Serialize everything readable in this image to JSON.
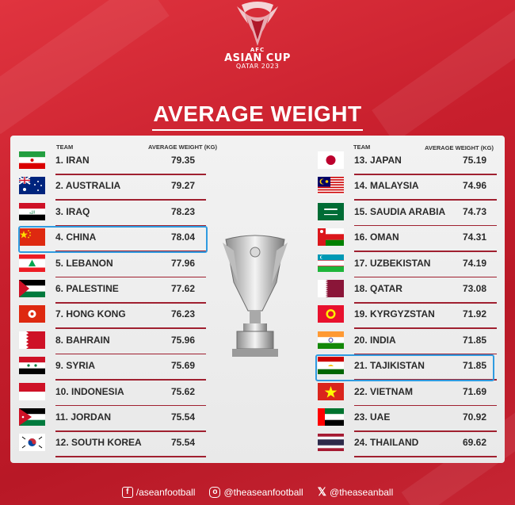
{
  "logo": {
    "line1": "AFC",
    "line2": "ASIAN CUP",
    "line3": "QATAR 2023"
  },
  "title": "AVERAGE WEIGHT",
  "headers": {
    "team": "TEAM",
    "weight": "AVERAGE WEIGHT (KG)"
  },
  "left": [
    {
      "name": "1. IRAN",
      "weight": "79.35",
      "flag": "iran"
    },
    {
      "name": "2. AUSTRALIA",
      "weight": "79.27",
      "flag": "australia"
    },
    {
      "name": "3. IRAQ",
      "weight": "78.23",
      "flag": "iraq"
    },
    {
      "name": "4. CHINA",
      "weight": "78.04",
      "flag": "china"
    },
    {
      "name": "5. LEBANON",
      "weight": "77.96",
      "flag": "lebanon"
    },
    {
      "name": "6. PALESTINE",
      "weight": "77.62",
      "flag": "palestine"
    },
    {
      "name": "7. HONG KONG",
      "weight": "76.23",
      "flag": "hong-kong"
    },
    {
      "name": "8. BAHRAIN",
      "weight": "75.96",
      "flag": "bahrain"
    },
    {
      "name": "9. SYRIA",
      "weight": "75.69",
      "flag": "syria"
    },
    {
      "name": "10. INDONESIA",
      "weight": "75.62",
      "flag": "indonesia"
    },
    {
      "name": "11. JORDAN",
      "weight": "75.54",
      "flag": "jordan"
    },
    {
      "name": "12. SOUTH KOREA",
      "weight": "75.54",
      "flag": "south-korea"
    }
  ],
  "right": [
    {
      "name": "13. JAPAN",
      "weight": "75.19",
      "flag": "japan"
    },
    {
      "name": "14. MALAYSIA",
      "weight": "74.96",
      "flag": "malaysia"
    },
    {
      "name": "15. SAUDIA ARABIA",
      "weight": "74.73",
      "flag": "saudi-arabia"
    },
    {
      "name": "16. OMAN",
      "weight": "74.31",
      "flag": "oman"
    },
    {
      "name": "17. UZBEKISTAN",
      "weight": "74.19",
      "flag": "uzbekistan"
    },
    {
      "name": "18. QATAR",
      "weight": "73.08",
      "flag": "qatar"
    },
    {
      "name": "19. KYRGYZSTAN",
      "weight": "71.92",
      "flag": "kyrgyzstan"
    },
    {
      "name": "20. INDIA",
      "weight": "71.85",
      "flag": "india"
    },
    {
      "name": "21. TAJIKISTAN",
      "weight": "71.85",
      "flag": "tajikistan"
    },
    {
      "name": "22. VIETNAM",
      "weight": "71.69",
      "flag": "vietnam"
    },
    {
      "name": "23. UAE",
      "weight": "70.92",
      "flag": "uae"
    },
    {
      "name": "24. THAILAND",
      "weight": "69.62",
      "flag": "thailand"
    }
  ],
  "highlighted": [
    "4. CHINA",
    "21. TAJIKISTAN"
  ],
  "colors": {
    "background": "#c81f2d",
    "highlight": "#2f9be0",
    "underline": "#a02030"
  },
  "footer": [
    {
      "icon": "facebook-icon",
      "text": "/aseanfootball"
    },
    {
      "icon": "instagram-icon",
      "text": "@theaseanfootball"
    },
    {
      "icon": "x-icon",
      "text": "@theaseanball"
    }
  ]
}
